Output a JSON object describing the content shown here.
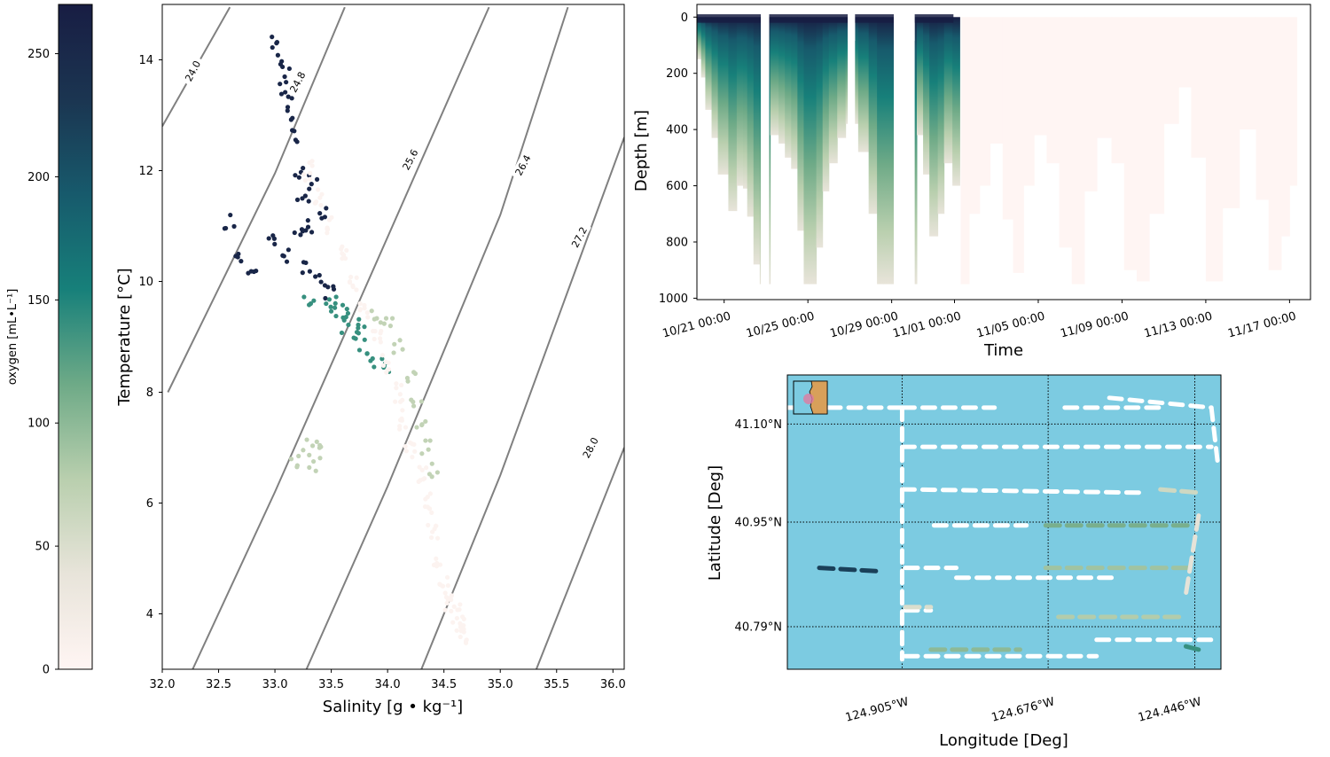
{
  "colors": {
    "cmap": [
      "#fff5f3",
      "#e8e4da",
      "#b9cfae",
      "#6eaa87",
      "#17807a",
      "#175a6c",
      "#1b3551",
      "#181d43"
    ],
    "isopycnal": "#808080",
    "ocean": "#7ccbe1",
    "land": "#d8a05a",
    "track": "#ffffff"
  },
  "colorbar": {
    "label": "oxygen [mL•L⁻¹]",
    "ticks": [
      "0",
      "50",
      "100",
      "150",
      "200",
      "250"
    ],
    "tick_values": [
      0,
      50,
      100,
      150,
      200,
      250
    ],
    "range": [
      0,
      270
    ]
  },
  "chart_data": [
    {
      "type": "scatter",
      "name": "ts_diagram",
      "xlabel": "Salinity [g • kg⁻¹]",
      "ylabel": "Temperature [°C]",
      "xlim": [
        32.0,
        36.1
      ],
      "ylim": [
        3.0,
        15.0
      ],
      "xticks": [
        "32.0",
        "32.5",
        "33.0",
        "33.5",
        "34.0",
        "34.5",
        "35.0",
        "35.5",
        "36.0"
      ],
      "xtick_values": [
        32.0,
        32.5,
        33.0,
        33.5,
        34.0,
        34.5,
        35.0,
        35.5,
        36.0
      ],
      "yticks": [
        "4",
        "6",
        "8",
        "10",
        "12",
        "14"
      ],
      "ytick_values": [
        4,
        6,
        8,
        10,
        12,
        14
      ],
      "isopycnals": [
        {
          "label": "24.0",
          "points": [
            [
              32.0,
              12.8
            ],
            [
              32.6,
              14.95
            ]
          ],
          "label_at": [
            32.27,
            13.8
          ]
        },
        {
          "label": "24.8",
          "points": [
            [
              32.05,
              8.0
            ],
            [
              33.0,
              11.95
            ],
            [
              33.62,
              14.95
            ]
          ],
          "label_at": [
            33.2,
            13.6
          ]
        },
        {
          "label": "25.6",
          "points": [
            [
              32.27,
              3.0
            ],
            [
              33.0,
              6.2
            ],
            [
              34.0,
              10.8
            ],
            [
              34.9,
              14.95
            ]
          ],
          "label_at": [
            34.2,
            12.2
          ]
        },
        {
          "label": "26.4",
          "points": [
            [
              33.28,
              3.0
            ],
            [
              34.0,
              6.3
            ],
            [
              35.0,
              11.2
            ],
            [
              35.6,
              14.95
            ]
          ],
          "label_at": [
            35.2,
            12.1
          ]
        },
        {
          "label": "27.2",
          "points": [
            [
              34.3,
              3.0
            ],
            [
              35.0,
              6.5
            ],
            [
              36.1,
              12.6
            ]
          ],
          "label_at": [
            35.7,
            10.8
          ]
        },
        {
          "label": "28.0",
          "points": [
            [
              35.32,
              3.0
            ],
            [
              36.1,
              7.0
            ]
          ],
          "label_at": [
            35.8,
            7.0
          ]
        }
      ],
      "series": [
        {
          "name": "",
          "desc": "surface high oxygen",
          "points": [
            [
              33.02,
              14.3
            ],
            [
              33.05,
              14.0
            ],
            [
              33.08,
              13.7
            ],
            [
              33.1,
              13.4
            ],
            [
              33.15,
              13.0
            ],
            [
              33.2,
              12.6
            ],
            [
              33.22,
              12.0
            ],
            [
              33.25,
              11.5
            ],
            [
              33.3,
              11.0
            ],
            [
              33.2,
              10.8
            ],
            [
              33.1,
              10.5
            ],
            [
              33.3,
              10.2
            ],
            [
              33.4,
              10.0
            ],
            [
              33.5,
              9.8
            ],
            [
              32.6,
              11.1
            ],
            [
              32.7,
              10.5
            ],
            [
              32.8,
              10.3
            ],
            [
              33.0,
              10.7
            ],
            [
              33.35,
              11.8
            ],
            [
              33.45,
              11.2
            ]
          ],
          "value": 255
        },
        {
          "name": "",
          "desc": "mid oxygen",
          "points": [
            [
              33.3,
              9.6
            ],
            [
              33.5,
              9.4
            ],
            [
              33.6,
              9.2
            ],
            [
              33.7,
              9.0
            ],
            [
              33.8,
              8.8
            ],
            [
              33.9,
              8.6
            ],
            [
              34.0,
              8.4
            ],
            [
              33.5,
              9.7
            ],
            [
              33.65,
              9.5
            ],
            [
              33.75,
              9.3
            ]
          ],
          "value": 140
        },
        {
          "name": "",
          "desc": "lower oxygen",
          "points": [
            [
              33.9,
              9.4
            ],
            [
              34.0,
              9.2
            ],
            [
              34.1,
              8.8
            ],
            [
              34.2,
              8.3
            ],
            [
              34.25,
              7.8
            ],
            [
              34.3,
              7.4
            ],
            [
              34.35,
              7.0
            ],
            [
              34.4,
              6.6
            ],
            [
              33.3,
              7.0
            ],
            [
              33.4,
              7.1
            ],
            [
              33.2,
              6.8
            ],
            [
              33.35,
              6.7
            ]
          ],
          "value": 70
        },
        {
          "name": "",
          "desc": "deep low oxygen",
          "points": [
            [
              33.3,
              12.0
            ],
            [
              33.4,
              11.5
            ],
            [
              33.5,
              11.0
            ],
            [
              33.6,
              10.5
            ],
            [
              33.7,
              10.0
            ],
            [
              33.8,
              9.5
            ],
            [
              33.9,
              9.0
            ],
            [
              34.0,
              8.5
            ],
            [
              34.1,
              8.0
            ],
            [
              34.15,
              7.5
            ],
            [
              34.2,
              7.0
            ],
            [
              34.3,
              6.5
            ],
            [
              34.35,
              6.0
            ],
            [
              34.4,
              5.5
            ],
            [
              34.45,
              5.0
            ],
            [
              34.5,
              4.5
            ],
            [
              34.55,
              4.2
            ],
            [
              34.6,
              4.0
            ],
            [
              34.65,
              3.8
            ],
            [
              34.68,
              3.65
            ]
          ],
          "value": 5
        }
      ]
    },
    {
      "type": "heatmap",
      "name": "depth_time_section",
      "xlabel": "Time",
      "ylabel": "Depth [m]",
      "xticks": [
        "10/21 00:00",
        "10/25 00:00",
        "10/29 00:00",
        "11/01 00:00",
        "11/05 00:00",
        "11/09 00:00",
        "11/13 00:00",
        "11/17 00:00"
      ],
      "xtick_days": [
        0,
        4,
        8,
        11,
        15,
        19,
        23,
        27
      ],
      "xlim_days": [
        -1.3,
        28.0
      ],
      "yticks": [
        "0",
        "200",
        "400",
        "600",
        "800",
        "1000"
      ],
      "ytick_values": [
        0,
        200,
        400,
        600,
        800,
        1000
      ],
      "ylim": [
        1005,
        -45
      ],
      "profiles_with_oxygen": [
        [
          -1.3,
          150
        ],
        [
          -1.1,
          215
        ],
        [
          -0.9,
          330
        ],
        [
          -0.6,
          430
        ],
        [
          -0.3,
          560
        ],
        [
          0.2,
          690
        ],
        [
          0.6,
          600
        ],
        [
          0.9,
          610
        ],
        [
          1.1,
          710
        ],
        [
          1.4,
          880
        ],
        [
          1.7,
          950
        ],
        [
          2.2,
          420
        ],
        [
          2.6,
          450
        ],
        [
          2.9,
          500
        ],
        [
          3.2,
          540
        ],
        [
          3.5,
          760
        ],
        [
          3.8,
          950
        ],
        [
          4.1,
          950
        ],
        [
          4.4,
          820
        ],
        [
          4.7,
          620
        ],
        [
          5.0,
          520
        ],
        [
          5.4,
          430
        ],
        [
          5.8,
          380
        ],
        [
          6.4,
          480
        ],
        [
          6.9,
          700
        ],
        [
          7.3,
          950
        ],
        [
          7.6,
          950
        ],
        [
          8.0,
          950
        ],
        [
          9.2,
          420
        ],
        [
          9.5,
          560
        ],
        [
          9.8,
          780
        ],
        [
          10.2,
          700
        ],
        [
          10.5,
          520
        ],
        [
          10.9,
          600
        ]
      ],
      "profiles_without_oxygen": [
        [
          11.3,
          950
        ],
        [
          11.7,
          700
        ],
        [
          12.2,
          600
        ],
        [
          12.7,
          450
        ],
        [
          13.3,
          720
        ],
        [
          13.8,
          910
        ],
        [
          14.3,
          600
        ],
        [
          14.8,
          420
        ],
        [
          15.4,
          520
        ],
        [
          16.0,
          820
        ],
        [
          16.6,
          950
        ],
        [
          17.2,
          620
        ],
        [
          17.8,
          430
        ],
        [
          18.5,
          520
        ],
        [
          19.1,
          900
        ],
        [
          19.7,
          940
        ],
        [
          20.3,
          700
        ],
        [
          21.0,
          380
        ],
        [
          21.7,
          250
        ],
        [
          22.3,
          500
        ],
        [
          23.0,
          940
        ],
        [
          23.8,
          680
        ],
        [
          24.6,
          400
        ],
        [
          25.4,
          650
        ],
        [
          26.0,
          900
        ],
        [
          26.6,
          780
        ],
        [
          27.0,
          600
        ]
      ]
    },
    {
      "type": "map",
      "name": "glider_track",
      "xlabel": "Longitude [Deg]",
      "ylabel": "Latitude [Deg]",
      "xticks": [
        "124.905°W",
        "124.676°W",
        "124.446°W"
      ],
      "xtick_values": [
        -124.905,
        -124.676,
        -124.446
      ],
      "yticks": [
        "41.10°N",
        "40.95°N",
        "40.79°N"
      ],
      "ytick_values": [
        41.1,
        40.95,
        40.79
      ],
      "xlim": [
        -125.085,
        -124.405
      ],
      "ylim": [
        40.725,
        41.175
      ],
      "inset": {
        "desc": "locator map with marker"
      },
      "track_white": [
        {
          "x": [
            -125.085,
            -124.905
          ],
          "y": [
            41.125,
            41.125
          ]
        },
        {
          "x": [
            -124.905,
            -124.76
          ],
          "y": [
            41.125,
            41.125
          ]
        },
        {
          "x": [
            -124.65,
            -124.5
          ],
          "y": [
            41.125,
            41.125
          ]
        },
        {
          "x": [
            -124.58,
            -124.42
          ],
          "y": [
            41.14,
            41.125
          ]
        },
        {
          "x": [
            -124.905,
            -124.42
          ],
          "y": [
            41.065,
            41.065
          ]
        },
        {
          "x": [
            -124.905,
            -124.53
          ],
          "y": [
            41.0,
            40.995
          ]
        },
        {
          "x": [
            -124.905,
            -124.905
          ],
          "y": [
            41.125,
            40.74
          ]
        },
        {
          "x": [
            -124.855,
            -124.71
          ],
          "y": [
            40.945,
            40.945
          ]
        },
        {
          "x": [
            -124.9,
            -124.82
          ],
          "y": [
            40.88,
            40.88
          ]
        },
        {
          "x": [
            -124.9,
            -124.86
          ],
          "y": [
            40.815,
            40.815
          ]
        },
        {
          "x": [
            -124.82,
            -124.57
          ],
          "y": [
            40.865,
            40.865
          ]
        },
        {
          "x": [
            -124.9,
            -124.6
          ],
          "y": [
            40.745,
            40.745
          ]
        },
        {
          "x": [
            -124.6,
            -124.42
          ],
          "y": [
            40.77,
            40.77
          ]
        },
        {
          "x": [
            -124.42,
            -124.41
          ],
          "y": [
            41.125,
            41.04
          ]
        }
      ],
      "track_colored": [
        {
          "x": [
            -125.035,
            -124.945
          ],
          "y": [
            40.88,
            40.875
          ],
          "value": 220
        },
        {
          "x": [
            -124.68,
            -124.45
          ],
          "y": [
            40.945,
            40.945
          ],
          "value": 110
        },
        {
          "x": [
            -124.68,
            -124.45
          ],
          "y": [
            40.88,
            40.88
          ],
          "value": 90
        },
        {
          "x": [
            -124.66,
            -124.46
          ],
          "y": [
            40.805,
            40.805
          ],
          "value": 80
        },
        {
          "x": [
            -124.5,
            -124.44
          ],
          "y": [
            41.0,
            40.995
          ],
          "value": 60
        },
        {
          "x": [
            -124.44,
            -124.46
          ],
          "y": [
            40.96,
            40.84
          ],
          "value": 40
        },
        {
          "x": [
            -124.9,
            -124.86
          ],
          "y": [
            40.82,
            40.82
          ],
          "value": 50
        },
        {
          "x": [
            -124.86,
            -124.72
          ],
          "y": [
            40.755,
            40.755
          ],
          "value": 100
        },
        {
          "x": [
            -124.46,
            -124.44
          ],
          "y": [
            40.76,
            40.755
          ],
          "value": 140
        }
      ]
    }
  ]
}
